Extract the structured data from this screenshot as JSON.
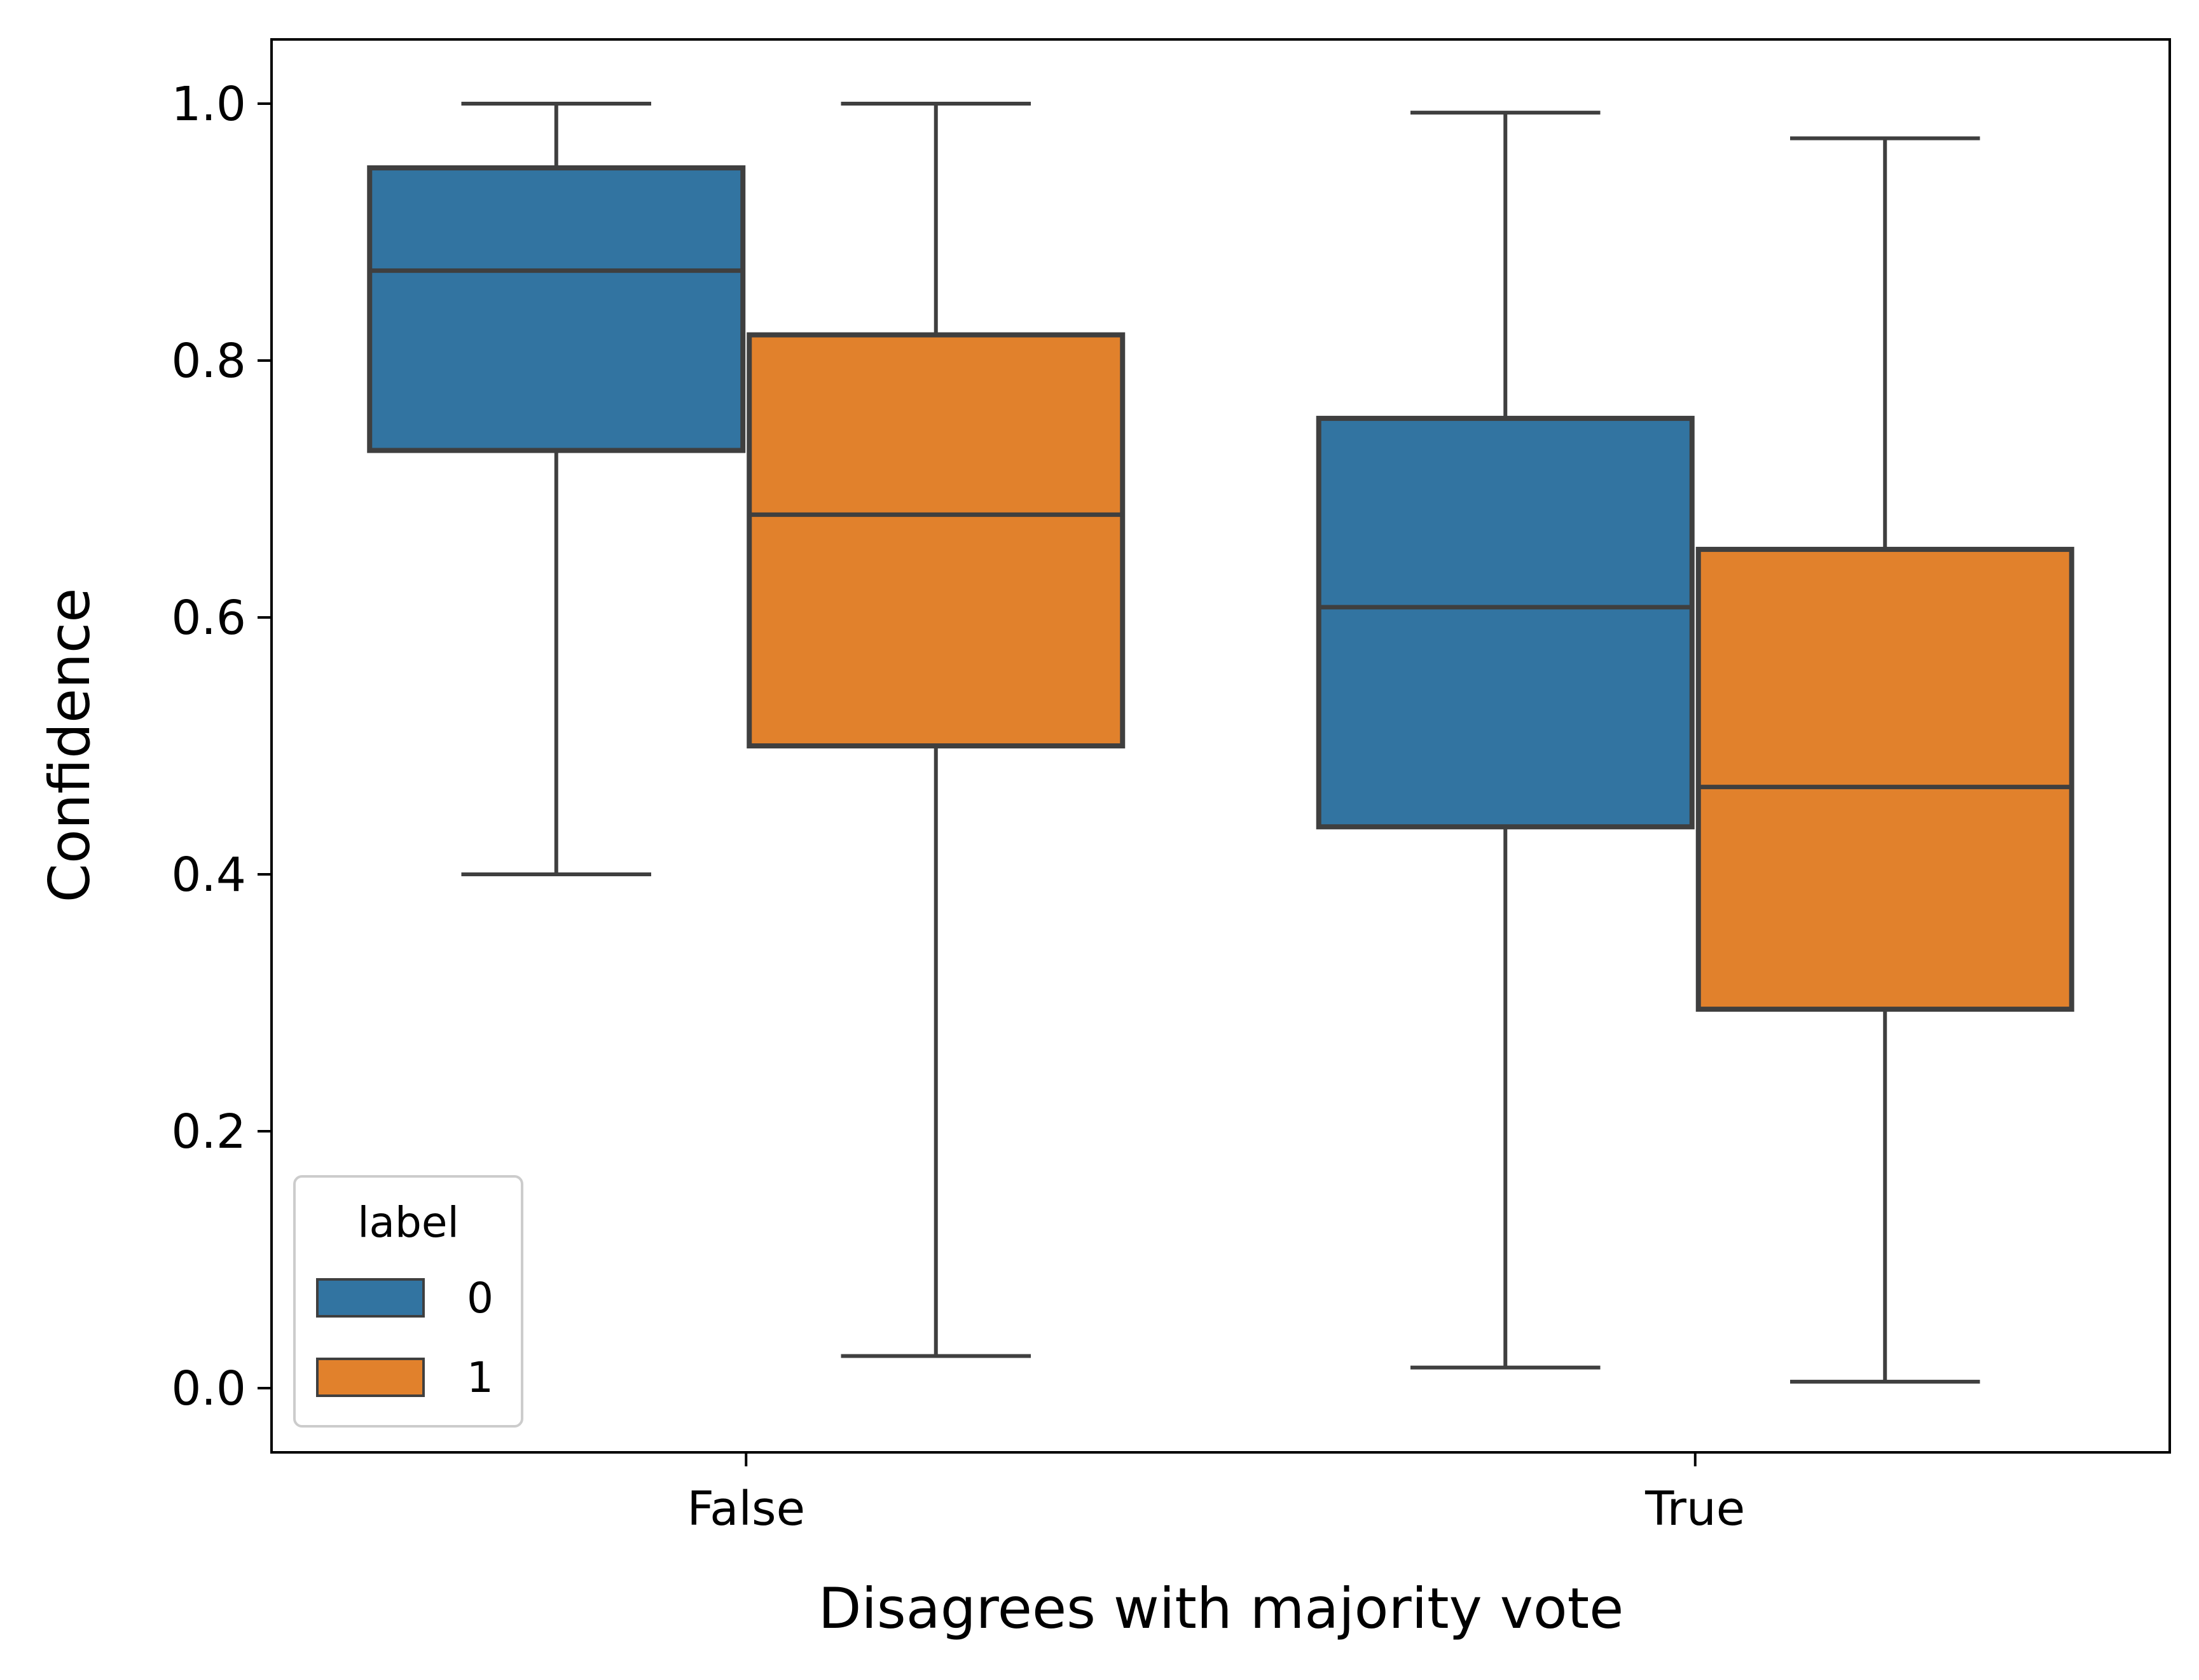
{
  "chart_data": {
    "type": "box",
    "title": "",
    "xlabel": "Disagrees with majority vote",
    "ylabel": "Confidence",
    "ylim": [
      -0.05,
      1.05
    ],
    "yticks": [
      "0.0",
      "0.2",
      "0.4",
      "0.6",
      "0.8",
      "1.0"
    ],
    "categories": [
      "False",
      "True"
    ],
    "grid": false,
    "legend": {
      "title": "label",
      "position": "lower-left",
      "entries": [
        "0",
        "1"
      ]
    },
    "series": [
      {
        "name": "0",
        "color": "#3274a1",
        "boxes": [
          {
            "category": "False",
            "whisker_low": 0.4,
            "q1": 0.73,
            "median": 0.87,
            "q3": 0.95,
            "whisker_high": 1.0
          },
          {
            "category": "True",
            "whisker_low": 0.016,
            "q1": 0.437,
            "median": 0.608,
            "q3": 0.755,
            "whisker_high": 0.993
          }
        ]
      },
      {
        "name": "1",
        "color": "#e1812c",
        "boxes": [
          {
            "category": "False",
            "whisker_low": 0.025,
            "q1": 0.5,
            "median": 0.68,
            "q3": 0.82,
            "whisker_high": 1.0
          },
          {
            "category": "True",
            "whisker_low": 0.005,
            "q1": 0.295,
            "median": 0.468,
            "q3": 0.653,
            "whisker_high": 0.973
          }
        ]
      }
    ],
    "colors": {
      "line": "#3f3f3f",
      "frame": "#000000"
    }
  }
}
